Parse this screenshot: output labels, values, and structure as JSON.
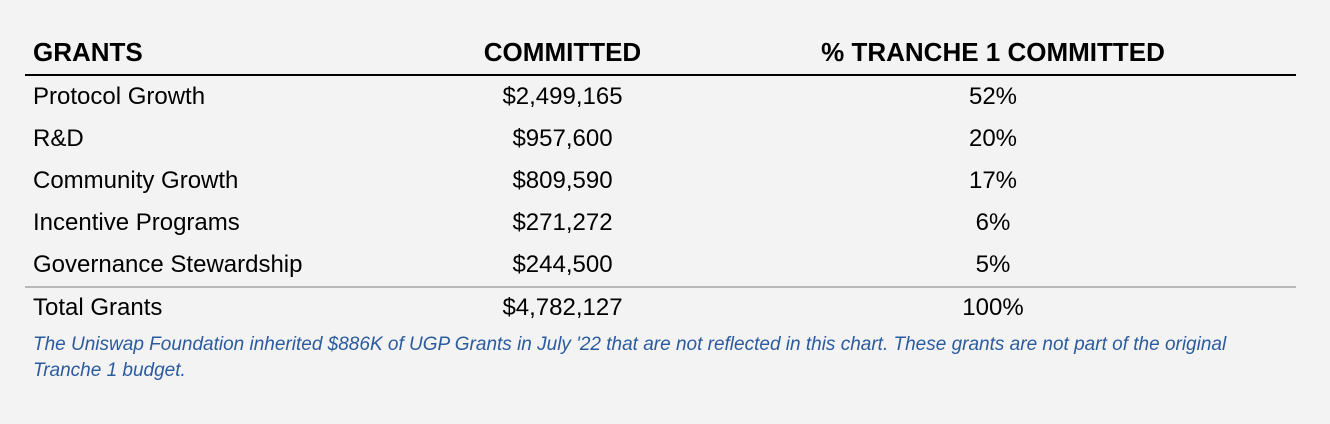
{
  "table": {
    "headers": [
      "GRANTS",
      "COMMITTED",
      "% TRANCHE 1 COMMITTED"
    ],
    "rows": [
      {
        "name": "Protocol Growth",
        "committed": "$2,499,165",
        "pct": "52%"
      },
      {
        "name": "R&D",
        "committed": "$957,600",
        "pct": "20%"
      },
      {
        "name": "Community Growth",
        "committed": "$809,590",
        "pct": "17%"
      },
      {
        "name": "Incentive Programs",
        "committed": "$271,272",
        "pct": "6%"
      },
      {
        "name": "Governance Stewardship",
        "committed": "$244,500",
        "pct": "5%"
      }
    ],
    "total": {
      "name": "Total Grants",
      "committed": "$4,782,127",
      "pct": "100%"
    }
  },
  "note": "The Uniswap Foundation inherited $886K of UGP Grants in July '22 that are not reflected in this chart. These grants are not part of the original Tranche 1 budget.",
  "colors": {
    "background": "#f3f3f3",
    "note_text": "#2b5b9e",
    "header_rule": "#000000",
    "total_rule": "#b9b9b9"
  }
}
